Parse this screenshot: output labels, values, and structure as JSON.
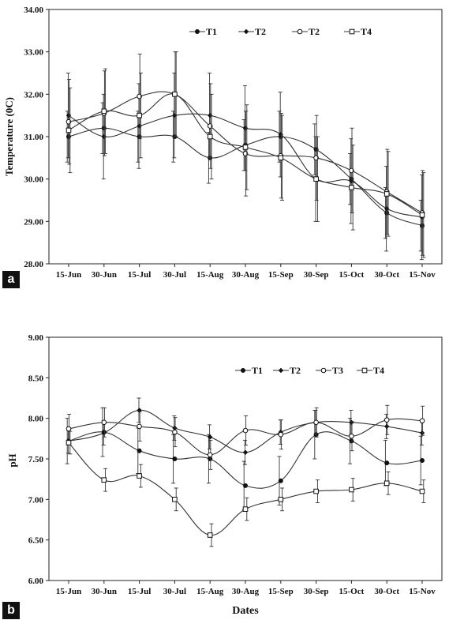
{
  "chart_data": [
    {
      "panel": "a",
      "type": "line",
      "title": "",
      "xlabel": "",
      "ylabel": "Temperature (0C)",
      "categories": [
        "15-Jun",
        "30-Jun",
        "15-Jul",
        "30-Jul",
        "15-Aug",
        "30-Aug",
        "15-Sep",
        "30-Sep",
        "15-Oct",
        "30-Oct",
        "15-Nov"
      ],
      "ylim": [
        28,
        34
      ],
      "yticks": [
        "28.00",
        "29.00",
        "30.00",
        "31.00",
        "32.00",
        "33.00",
        "34.00"
      ],
      "grid": false,
      "legend_position": "top-right",
      "series": [
        {
          "name": "T1",
          "marker": "filled-circle",
          "values": [
            31.0,
            31.2,
            31.0,
            31.0,
            30.5,
            30.8,
            31.0,
            30.7,
            30.0,
            29.2,
            28.9
          ],
          "errors": [
            0.6,
            0.6,
            0.6,
            0.6,
            0.6,
            0.6,
            0.6,
            0.6,
            0.6,
            0.6,
            0.6
          ]
        },
        {
          "name": "T2",
          "marker": "filled-diamond",
          "values": [
            31.5,
            31.0,
            31.25,
            31.5,
            31.5,
            31.2,
            31.05,
            30.0,
            29.95,
            29.3,
            29.1
          ],
          "errors": [
            1.0,
            1.0,
            1.0,
            1.0,
            1.0,
            1.0,
            1.0,
            1.0,
            1.0,
            1.0,
            1.0
          ]
        },
        {
          "name": "T2",
          "marker": "open-circle",
          "values": [
            31.35,
            31.55,
            31.95,
            32.0,
            31.25,
            30.6,
            30.55,
            30.5,
            30.2,
            29.7,
            29.2
          ],
          "errors": [
            1.0,
            1.0,
            1.0,
            1.0,
            1.0,
            1.0,
            1.0,
            1.0,
            1.0,
            1.0,
            1.0
          ]
        },
        {
          "name": "T4",
          "marker": "open-square",
          "values": [
            31.15,
            31.6,
            31.5,
            32.0,
            31.0,
            30.75,
            30.5,
            30.0,
            29.8,
            29.65,
            29.15
          ],
          "errors": [
            1.0,
            1.0,
            1.0,
            1.0,
            1.0,
            1.0,
            1.0,
            1.0,
            1.0,
            1.0,
            1.0
          ]
        }
      ]
    },
    {
      "panel": "b",
      "type": "line",
      "title": "",
      "xlabel": "Dates",
      "ylabel": "pH",
      "categories": [
        "15-Jun",
        "30-Jun",
        "15-Jul",
        "30-Jul",
        "15-Aug",
        "30-Aug",
        "15-Sep",
        "30-Sep",
        "15-Oct",
        "30-Oct",
        "15-Nov"
      ],
      "ylim": [
        6,
        9
      ],
      "yticks": [
        "6.00",
        "6.50",
        "7.00",
        "7.50",
        "8.00",
        "8.50",
        "9.00"
      ],
      "grid": false,
      "legend_position": "top-right",
      "series": [
        {
          "name": "T1",
          "marker": "filled-circle",
          "values": [
            7.72,
            7.83,
            7.6,
            7.5,
            7.5,
            7.17,
            7.23,
            7.8,
            7.72,
            7.45,
            7.48
          ],
          "errors": [
            0.28,
            0.3,
            0.28,
            0.3,
            0.3,
            0.3,
            0.3,
            0.3,
            0.28,
            0.28,
            0.3
          ]
        },
        {
          "name": "T2",
          "marker": "filled-diamond",
          "values": [
            7.72,
            7.82,
            8.1,
            7.88,
            7.77,
            7.58,
            7.83,
            7.95,
            7.95,
            7.9,
            7.82
          ],
          "errors": [
            0.15,
            0.15,
            0.15,
            0.15,
            0.15,
            0.15,
            0.15,
            0.15,
            0.15,
            0.15,
            0.15
          ]
        },
        {
          "name": "T3",
          "marker": "open-circle",
          "values": [
            7.87,
            7.95,
            7.9,
            7.83,
            7.55,
            7.85,
            7.8,
            7.95,
            7.78,
            7.98,
            7.97
          ],
          "errors": [
            0.18,
            0.18,
            0.18,
            0.18,
            0.18,
            0.18,
            0.18,
            0.18,
            0.18,
            0.18,
            0.18
          ]
        },
        {
          "name": "T4",
          "marker": "open-square",
          "values": [
            7.7,
            7.24,
            7.29,
            7.0,
            6.56,
            6.88,
            7.0,
            7.1,
            7.12,
            7.2,
            7.1
          ],
          "errors": [
            0.14,
            0.14,
            0.14,
            0.14,
            0.14,
            0.14,
            0.14,
            0.14,
            0.14,
            0.14,
            0.14
          ]
        }
      ]
    }
  ]
}
